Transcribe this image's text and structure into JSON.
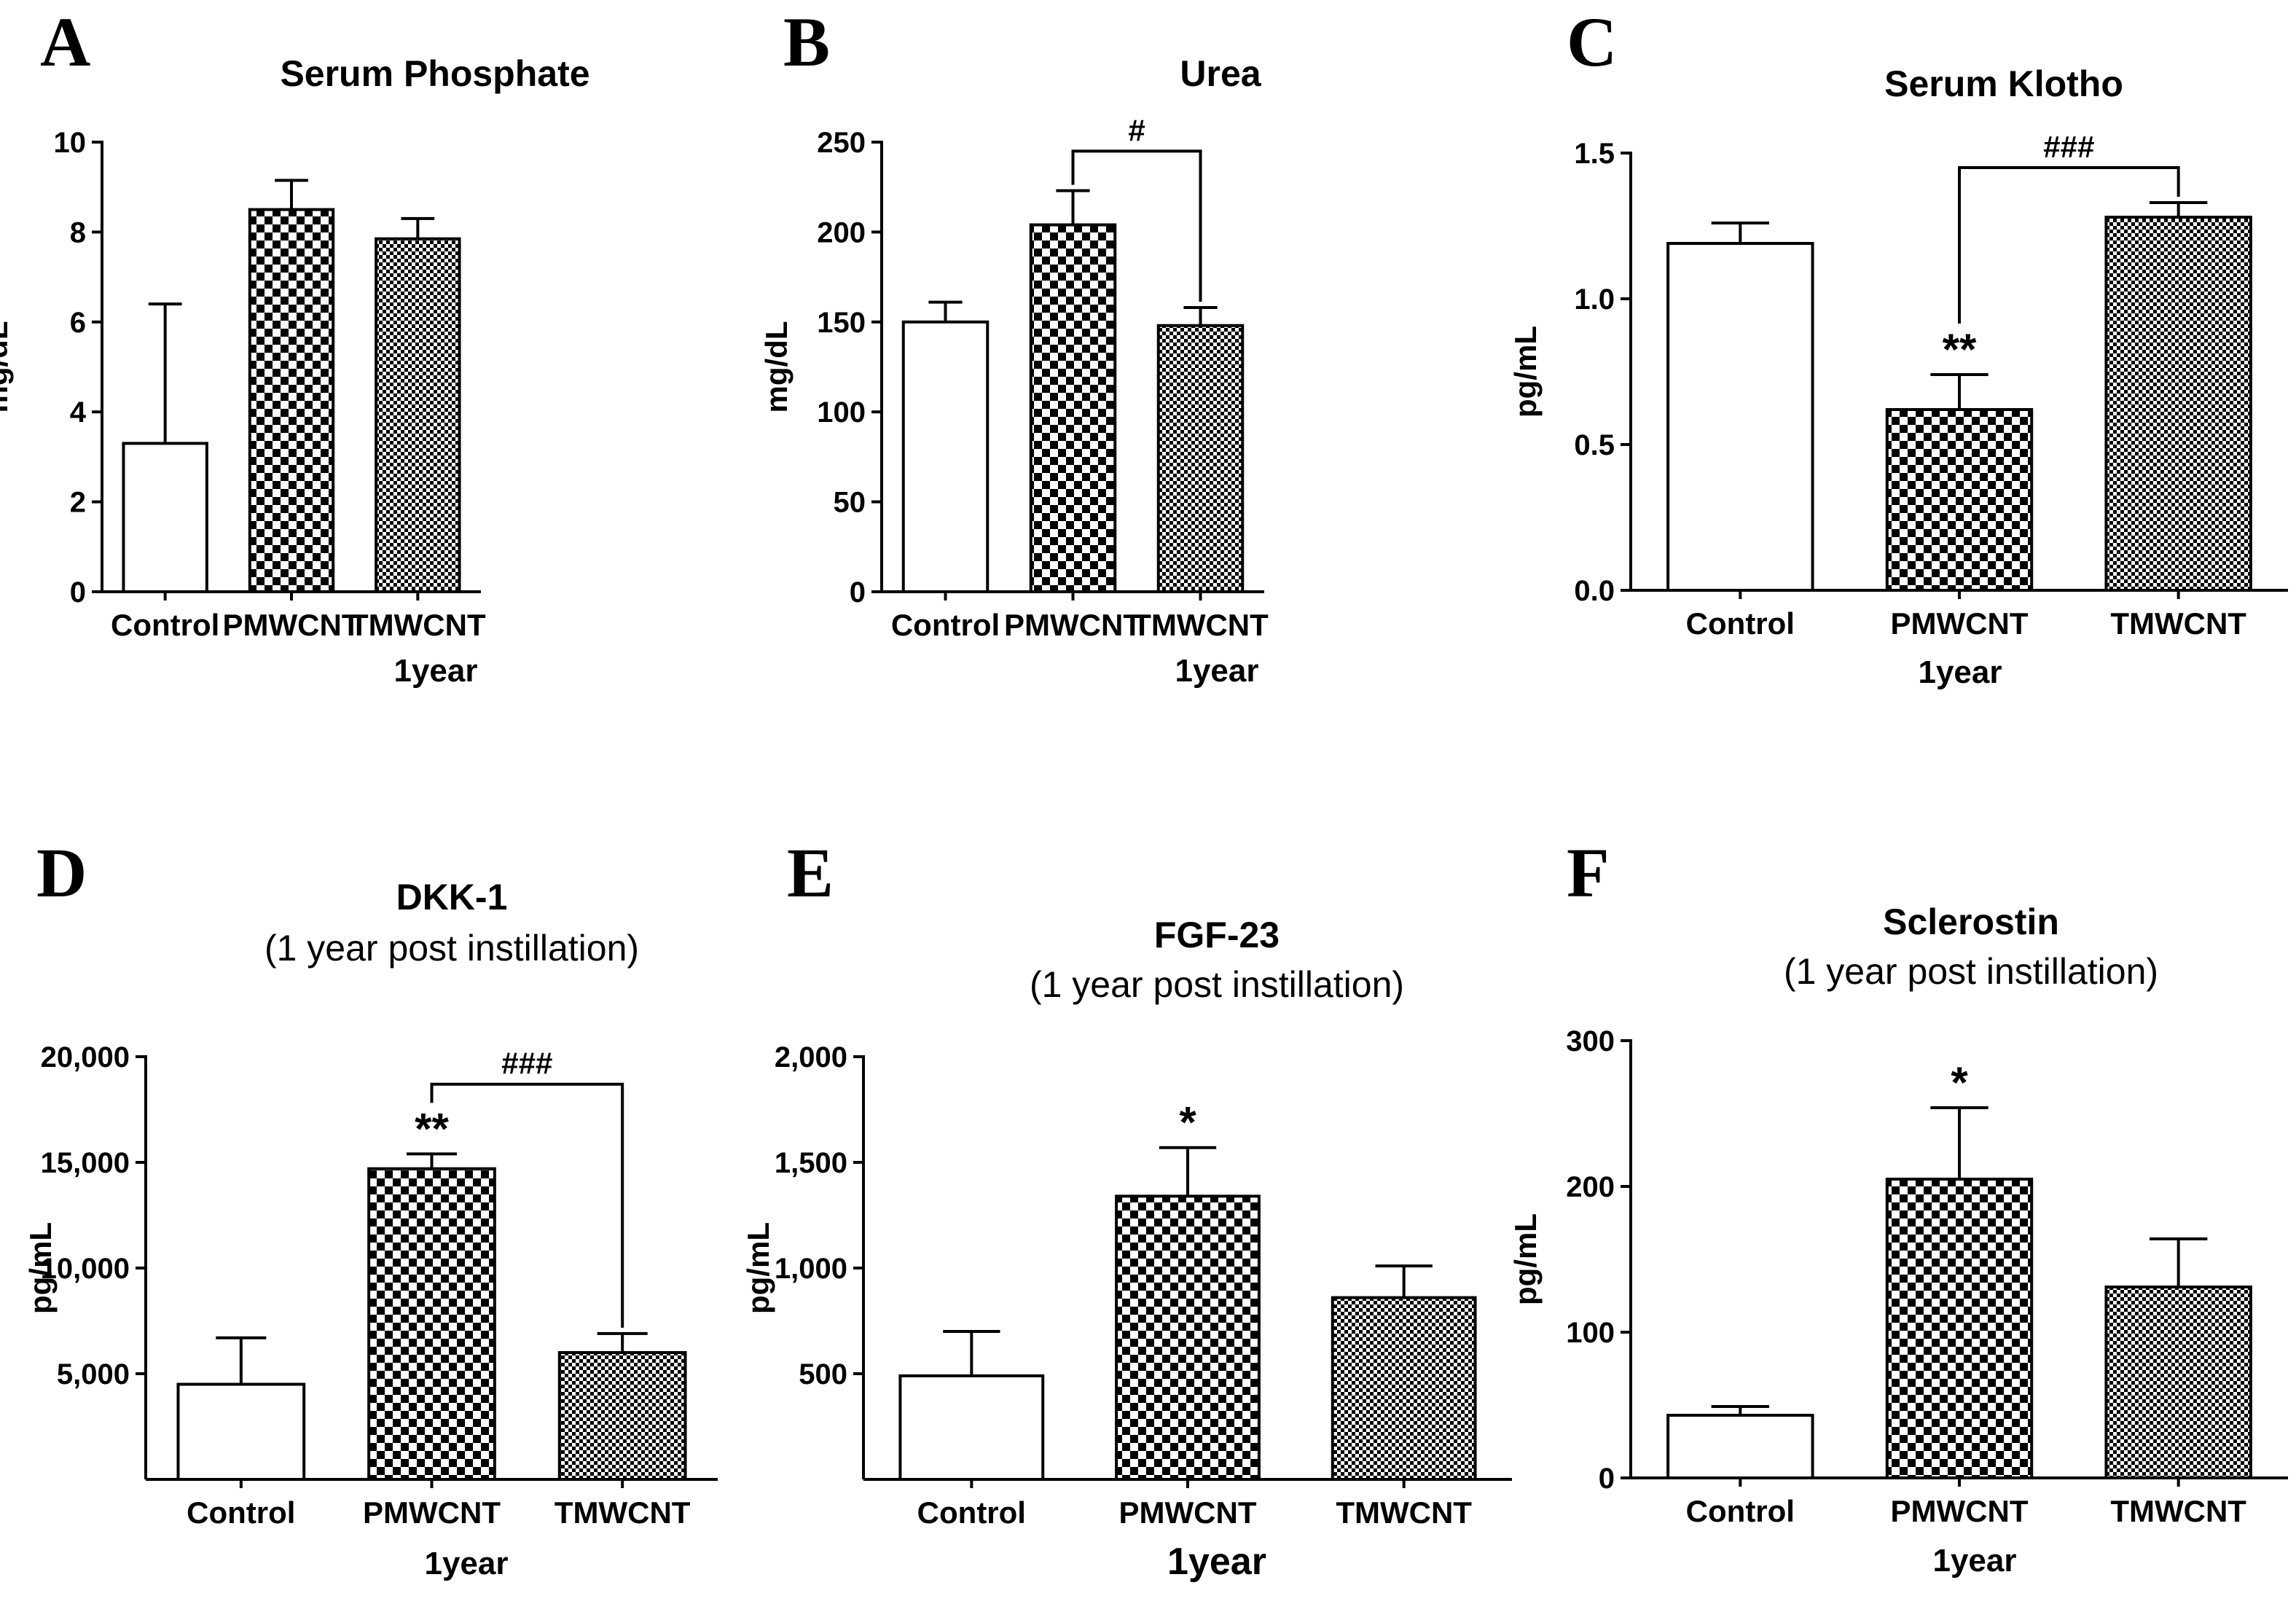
{
  "figure": {
    "colors": {
      "ink": "#000000",
      "paper": "#ffffff",
      "hatch_light": "#e6e6e6"
    }
  },
  "chart_data": [
    {
      "panel": "A",
      "type": "bar",
      "title": "Serum Phosphate",
      "subtitle": "",
      "ylabel": "mg/dL",
      "xlabel": "1year",
      "categories": [
        "Control",
        "PMWCNT",
        "TMWCNT"
      ],
      "values": [
        3.3,
        8.5,
        7.85
      ],
      "errors": [
        3.1,
        0.65,
        0.45
      ],
      "ylim": [
        0,
        10
      ],
      "yticks": [
        0,
        2,
        4,
        6,
        8,
        10
      ],
      "ytick_labels": [
        "0",
        "2",
        "4",
        "6",
        "8",
        "10"
      ],
      "annotations": [],
      "brackets": []
    },
    {
      "panel": "B",
      "type": "bar",
      "title": "Urea",
      "subtitle": "",
      "ylabel": "mg/dL",
      "xlabel": "1year",
      "categories": [
        "Control",
        "PMWCNT",
        "TMWCNT"
      ],
      "values": [
        150,
        204,
        148
      ],
      "errors": [
        11,
        19,
        10
      ],
      "ylim": [
        0,
        250
      ],
      "yticks": [
        0,
        50,
        100,
        150,
        200,
        250
      ],
      "ytick_labels": [
        "0",
        "50",
        "100",
        "150",
        "200",
        "250"
      ],
      "annotations": [],
      "brackets": [
        {
          "from": 1,
          "to": 2,
          "y": 245,
          "label": "#"
        }
      ]
    },
    {
      "panel": "C",
      "type": "bar",
      "title": "Serum Klotho",
      "subtitle": "",
      "ylabel": "pg/mL",
      "xlabel": "1year",
      "categories": [
        "Control",
        "PMWCNT",
        "TMWCNT"
      ],
      "values": [
        1.19,
        0.62,
        1.28
      ],
      "errors": [
        0.07,
        0.12,
        0.05
      ],
      "ylim": [
        0,
        1.5
      ],
      "yticks": [
        0,
        0.5,
        1.0,
        1.5
      ],
      "ytick_labels": [
        "0.0",
        "0.5",
        "1.0",
        "1.5"
      ],
      "annotations": [
        {
          "index": 1,
          "label": "**"
        }
      ],
      "brackets": [
        {
          "from": 1,
          "to": 2,
          "y": 1.45,
          "label": "###"
        }
      ]
    },
    {
      "panel": "D",
      "type": "bar",
      "title": "DKK-1",
      "subtitle": "(1 year post instillation)",
      "ylabel": "pg/mL",
      "xlabel": "1year",
      "categories": [
        "Control",
        "PMWCNT",
        "TMWCNT"
      ],
      "values": [
        4500,
        14700,
        6000
      ],
      "errors": [
        2200,
        700,
        900
      ],
      "ylim": [
        0,
        20000
      ],
      "yticks": [
        5000,
        10000,
        15000,
        20000
      ],
      "ytick_labels": [
        "5,000",
        "10,000",
        "15,000",
        "20,000"
      ],
      "annotations": [
        {
          "index": 1,
          "label": "**"
        }
      ],
      "brackets": [
        {
          "from": 1,
          "to": 2,
          "y": 18700,
          "label": "###"
        }
      ]
    },
    {
      "panel": "E",
      "type": "bar",
      "title": "FGF-23",
      "subtitle": "(1 year post instillation)",
      "ylabel": "pg/mL",
      "xlabel": "1year",
      "categories": [
        "Control",
        "PMWCNT",
        "TMWCNT"
      ],
      "values": [
        490,
        1340,
        860
      ],
      "errors": [
        210,
        230,
        150
      ],
      "ylim": [
        0,
        2000
      ],
      "yticks": [
        500,
        1000,
        1500,
        2000
      ],
      "ytick_labels": [
        "500",
        "1,000",
        "1,500",
        "2,000"
      ],
      "annotations": [
        {
          "index": 1,
          "label": "*"
        }
      ],
      "brackets": []
    },
    {
      "panel": "F",
      "type": "bar",
      "title": "Sclerostin",
      "subtitle": "(1 year post instillation)",
      "ylabel": "pg/mL",
      "xlabel": "1year",
      "categories": [
        "Control",
        "PMWCNT",
        "TMWCNT"
      ],
      "values": [
        43,
        205,
        131
      ],
      "errors": [
        6,
        49,
        33
      ],
      "ylim": [
        0,
        300
      ],
      "yticks": [
        0,
        100,
        200,
        300
      ],
      "ytick_labels": [
        "0",
        "100",
        "200",
        "300"
      ],
      "annotations": [
        {
          "index": 1,
          "label": "*"
        }
      ],
      "brackets": []
    }
  ]
}
